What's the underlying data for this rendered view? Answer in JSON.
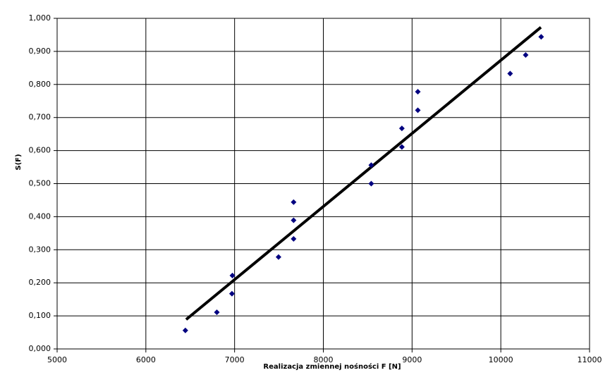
{
  "chart_data": {
    "type": "scatter",
    "xlabel": "Realizacja zmiennej nośności F [N]",
    "ylabel": "S(F)",
    "xlim": [
      5000,
      11000
    ],
    "xticks": [
      5000,
      6000,
      7000,
      8000,
      9000,
      10000,
      11000
    ],
    "ylim": [
      0,
      1
    ],
    "yticks": [
      {
        "value": 0,
        "label": "0,000"
      },
      {
        "value": 0.1,
        "label": "0,100"
      },
      {
        "value": 0.2,
        "label": "0,200"
      },
      {
        "value": 0.3,
        "label": "0,300"
      },
      {
        "value": 0.4,
        "label": "0,400"
      },
      {
        "value": 0.5,
        "label": "0,500"
      },
      {
        "value": 0.6,
        "label": "0,600"
      },
      {
        "value": 0.7,
        "label": "0,700"
      },
      {
        "value": 0.8,
        "label": "0,800"
      },
      {
        "value": 0.9,
        "label": "0,900"
      },
      {
        "value": 1,
        "label": "1,000"
      }
    ],
    "grid": true,
    "series": [
      {
        "color": "#000080",
        "x": [
          6445,
          6800,
          6970,
          6975,
          7495,
          7665,
          7665,
          7665,
          8540,
          8540,
          8885,
          8885,
          9065,
          9065,
          10105,
          10280,
          10455
        ],
        "values": [
          0.056,
          0.111,
          0.167,
          0.222,
          0.278,
          0.333,
          0.389,
          0.444,
          0.5,
          0.556,
          0.611,
          0.667,
          0.722,
          0.778,
          0.833,
          0.889,
          0.944
        ]
      }
    ],
    "trendline": {
      "color": "#000000",
      "x": [
        6454,
        10452
      ],
      "values": [
        0.089,
        0.973
      ]
    }
  }
}
